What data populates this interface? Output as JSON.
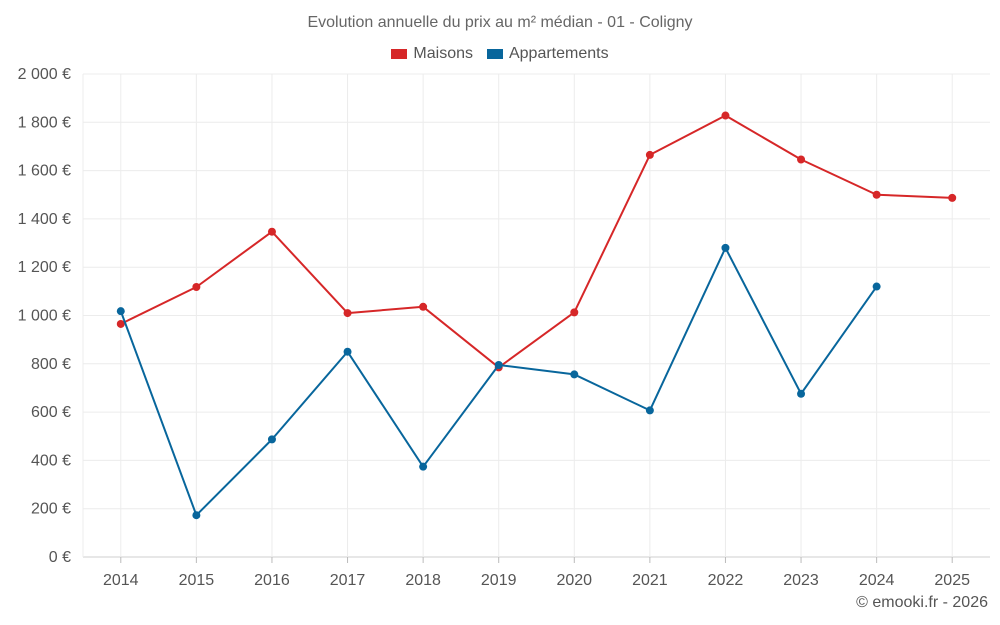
{
  "chart_data": {
    "type": "line",
    "title": "Evolution annuelle du prix au m² médian - 01 - Coligny",
    "categories": [
      "2014",
      "2015",
      "2016",
      "2017",
      "2018",
      "2019",
      "2020",
      "2021",
      "2022",
      "2023",
      "2024",
      "2025"
    ],
    "ylim": [
      0,
      2000
    ],
    "yticks": [
      0,
      200,
      400,
      600,
      800,
      1000,
      1200,
      1400,
      1600,
      1800,
      2000
    ],
    "ytick_labels": [
      "0 €",
      "200 €",
      "400 €",
      "600 €",
      "800 €",
      "1 000 €",
      "1 200 €",
      "1 400 €",
      "1 600 €",
      "1 800 €",
      "2 000 €"
    ],
    "xlabel": "",
    "ylabel": "",
    "grid": true,
    "legend_position": "top-center",
    "series": [
      {
        "name": "Maisons",
        "color": "#d62728",
        "values": [
          965,
          1118,
          1347,
          1010,
          1036,
          785,
          1013,
          1665,
          1828,
          1646,
          1500,
          1487
        ]
      },
      {
        "name": "Appartements",
        "color": "#08669c",
        "values": [
          1018,
          173,
          487,
          850,
          374,
          795,
          756,
          607,
          1280,
          676,
          1120,
          null
        ]
      }
    ]
  },
  "credit": "© emooki.fr - 2026"
}
